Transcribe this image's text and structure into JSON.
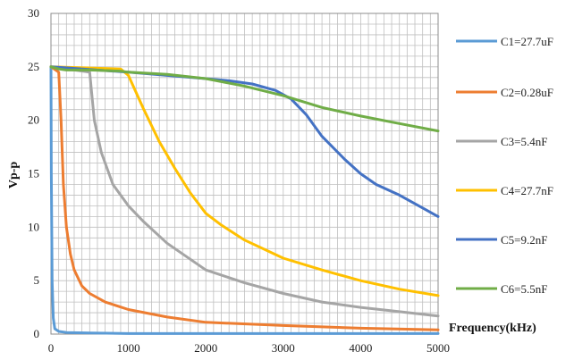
{
  "chart_data": {
    "type": "line",
    "xlabel": "Frequency(kHz)",
    "ylabel": "Vp-p",
    "xlim": [
      0,
      5000
    ],
    "ylim": [
      0,
      30
    ],
    "x_ticks": [
      0,
      1000,
      2000,
      3000,
      4000,
      5000
    ],
    "y_ticks": [
      0,
      5,
      10,
      15,
      20,
      25,
      30
    ],
    "grid": true,
    "legend_position": "right",
    "series": [
      {
        "name": "C1=27.7uF",
        "color": "#5B9BD5",
        "x": [
          0,
          5,
          15,
          30,
          50,
          100,
          200,
          500,
          1000,
          2000,
          3000,
          4000,
          5000
        ],
        "y": [
          25,
          15,
          5,
          1.5,
          0.5,
          0.25,
          0.15,
          0.1,
          0.05,
          0.05,
          0.05,
          0.05,
          0.05
        ]
      },
      {
        "name": "C2=0.28uF",
        "color": "#ED7D31",
        "x": [
          0,
          100,
          130,
          160,
          200,
          250,
          300,
          400,
          500,
          700,
          1000,
          1500,
          2000,
          3000,
          4000,
          5000
        ],
        "y": [
          25,
          24.5,
          20,
          14,
          10,
          7.5,
          6,
          4.5,
          3.8,
          3.0,
          2.3,
          1.6,
          1.1,
          0.8,
          0.55,
          0.4
        ]
      },
      {
        "name": "C3=5.4nF",
        "color": "#A5A5A5",
        "x": [
          0,
          500,
          560,
          650,
          800,
          1000,
          1200,
          1500,
          2000,
          2500,
          3000,
          3500,
          4000,
          4500,
          5000
        ],
        "y": [
          25,
          24.5,
          20,
          17,
          14,
          12,
          10.5,
          8.5,
          6,
          4.8,
          3.8,
          3.0,
          2.5,
          2.1,
          1.7
        ]
      },
      {
        "name": "C4=27.7nF",
        "color": "#FFC000",
        "x": [
          0,
          900,
          1000,
          1200,
          1400,
          1600,
          1800,
          2000,
          2200,
          2500,
          3000,
          3500,
          4000,
          4500,
          5000
        ],
        "y": [
          25,
          24.8,
          24.2,
          21,
          18,
          15.5,
          13.2,
          11.3,
          10.2,
          8.8,
          7.1,
          6.0,
          5.0,
          4.2,
          3.6
        ]
      },
      {
        "name": "C5=9.2nF",
        "color": "#4472C4",
        "x": [
          0,
          1000,
          1500,
          2000,
          2300,
          2600,
          2900,
          3100,
          3300,
          3500,
          3800,
          4000,
          4200,
          4500,
          4800,
          5000
        ],
        "y": [
          25,
          24.5,
          24.2,
          23.9,
          23.7,
          23.4,
          22.8,
          22.0,
          20.5,
          18.5,
          16.3,
          15.0,
          14.0,
          13.0,
          11.8,
          11.0
        ]
      },
      {
        "name": "C6=5.5nF",
        "color": "#70AD47",
        "x": [
          0,
          100,
          200,
          500,
          900,
          1000,
          1500,
          2000,
          2500,
          3000,
          3500,
          4000,
          4500,
          5000
        ],
        "y": [
          25,
          24.8,
          24.7,
          24.7,
          24.6,
          24.5,
          24.3,
          23.9,
          23.2,
          22.3,
          21.2,
          20.4,
          19.7,
          19.0
        ]
      }
    ]
  }
}
